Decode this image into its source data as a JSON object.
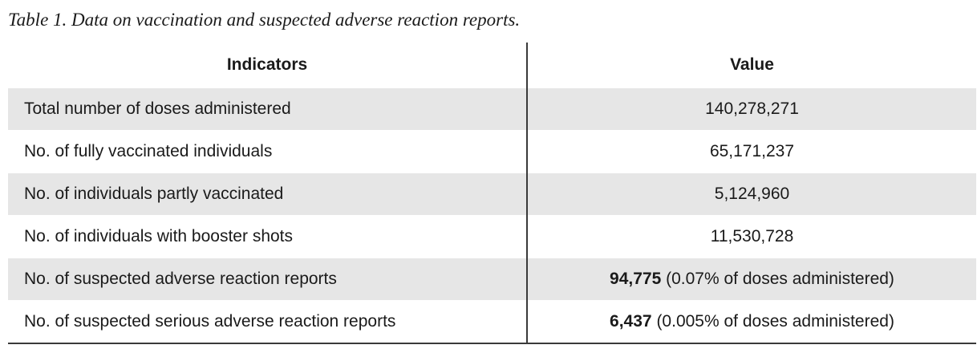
{
  "caption": "Table 1. Data on vaccination and suspected adverse reaction reports.",
  "headers": {
    "indicators": "Indicators",
    "value": "Value"
  },
  "rows": [
    {
      "indicator": "Total number of doses administered",
      "value_bold": "",
      "value": "140,278,271"
    },
    {
      "indicator": "No. of fully vaccinated individuals",
      "value_bold": "",
      "value": "65,171,237"
    },
    {
      "indicator": "No. of individuals partly vaccinated",
      "value_bold": "",
      "value": "5,124,960"
    },
    {
      "indicator": "No. of individuals with booster shots",
      "value_bold": "",
      "value": "11,530,728"
    },
    {
      "indicator": "No. of suspected adverse reaction reports",
      "value_bold": "94,775",
      "value": " (0.07% of doses administered)"
    },
    {
      "indicator": "No. of suspected serious adverse reaction reports",
      "value_bold": "6,437",
      "value": " (0.005% of doses administered)"
    }
  ]
}
